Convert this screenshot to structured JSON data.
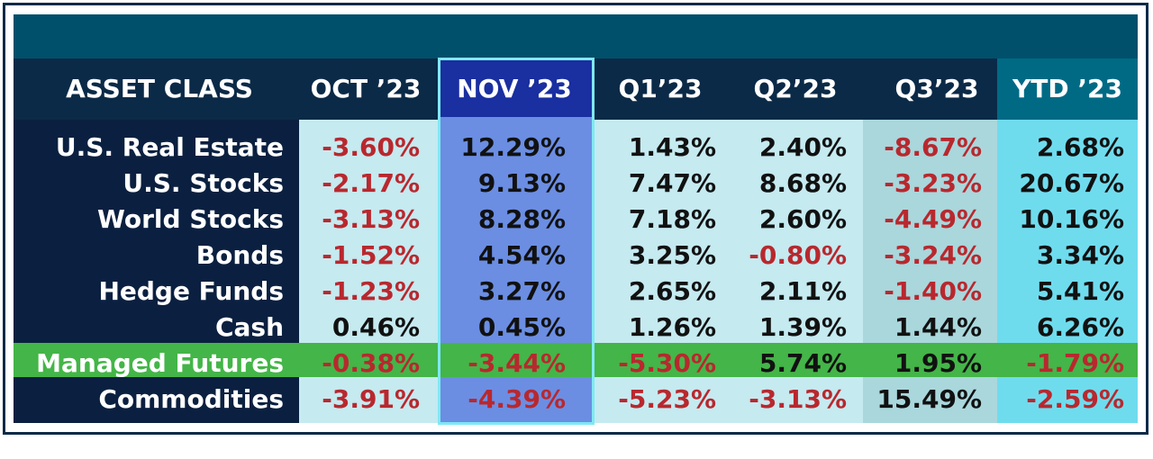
{
  "chart_data": {
    "type": "table",
    "columns": [
      "ASSET CLASS",
      "OCT ’23",
      "NOV ’23",
      "Q1’23",
      "Q2’23",
      "Q3’23",
      "YTD ’23"
    ],
    "rows": [
      {
        "label": "U.S. Real Estate",
        "values": [
          "-3.60%",
          "12.29%",
          "1.43%",
          "2.40%",
          "-8.67%",
          "2.68%"
        ]
      },
      {
        "label": "U.S. Stocks",
        "values": [
          "-2.17%",
          "9.13%",
          "7.47%",
          "8.68%",
          "-3.23%",
          "20.67%"
        ]
      },
      {
        "label": "World Stocks",
        "values": [
          "-3.13%",
          "8.28%",
          "7.18%",
          "2.60%",
          "-4.49%",
          "10.16%"
        ]
      },
      {
        "label": "Bonds",
        "values": [
          "-1.52%",
          "4.54%",
          "3.25%",
          "-0.80%",
          "-3.24%",
          "3.34%"
        ]
      },
      {
        "label": "Hedge Funds",
        "values": [
          "-1.23%",
          "3.27%",
          "2.65%",
          "2.11%",
          "-1.40%",
          "5.41%"
        ]
      },
      {
        "label": "Cash",
        "values": [
          "0.46%",
          "0.45%",
          "1.26%",
          "1.39%",
          "1.44%",
          "6.26%"
        ]
      },
      {
        "label": "Managed Futures",
        "values": [
          "-0.38%",
          "-3.44%",
          "-5.30%",
          "5.74%",
          "1.95%",
          "-1.79%"
        ]
      },
      {
        "label": "Commodities",
        "values": [
          "-3.91%",
          "-4.39%",
          "-5.23%",
          "-3.13%",
          "15.49%",
          "-2.59%"
        ]
      }
    ],
    "highlighted_column": "NOV ’23",
    "highlighted_row": "Managed Futures",
    "colors": {
      "banner": "#00506b",
      "header": "#0b2a47",
      "label_bg": "#0b2040",
      "value_bg_light": "#c5eaf0",
      "value_bg_q3": "#a9d7dc",
      "value_bg_ytd": "#6fdcee",
      "highlight_column": "#6b8ee3",
      "highlight_header": "#1a2fa0",
      "highlight_row": "#44b548",
      "negative": "#b8282e",
      "positive": "#111111"
    }
  }
}
